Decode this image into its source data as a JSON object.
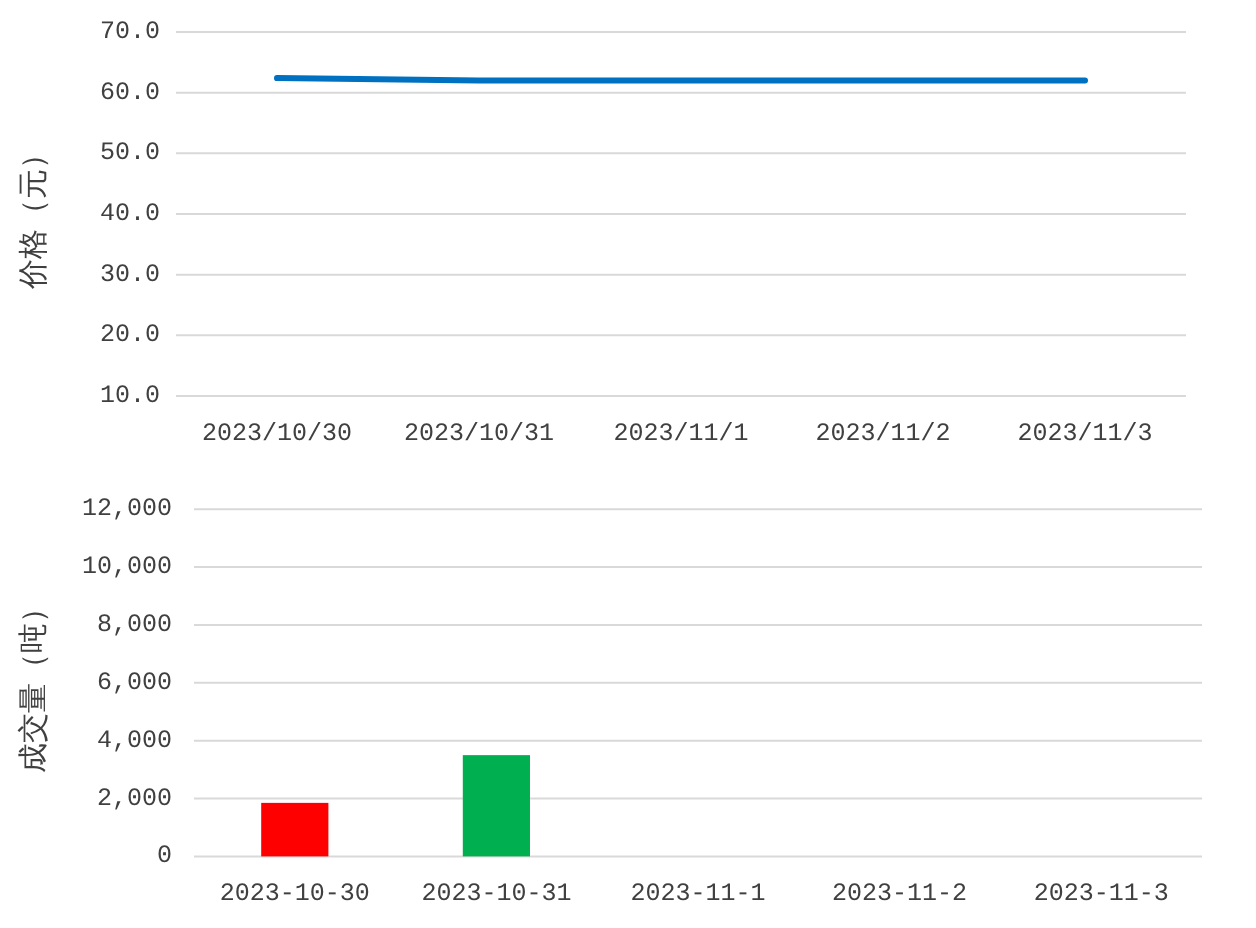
{
  "chart_data": [
    {
      "type": "line",
      "ylabel": "价格（元）",
      "categories": [
        "2023/10/30",
        "2023/10/31",
        "2023/11/1",
        "2023/11/2",
        "2023/11/3"
      ],
      "series": [
        {
          "color": "#0070c0",
          "values": [
            62.4,
            62.0,
            62.0,
            62.0,
            62.0
          ]
        }
      ],
      "ylim": [
        10,
        70
      ],
      "yticks": [
        {
          "value": 10,
          "label": "10.0"
        },
        {
          "value": 20,
          "label": "20.0"
        },
        {
          "value": 30,
          "label": "30.0"
        },
        {
          "value": 40,
          "label": "40.0"
        },
        {
          "value": 50,
          "label": "50.0"
        },
        {
          "value": 60,
          "label": "60.0"
        },
        {
          "value": 70,
          "label": "70.0"
        }
      ],
      "grid": "y"
    },
    {
      "type": "bar",
      "ylabel": "成交量（吨）",
      "categories": [
        "2023-10-30",
        "2023-10-31",
        "2023-11-1",
        "2023-11-2",
        "2023-11-3"
      ],
      "values": [
        1850,
        3500,
        null,
        null,
        null
      ],
      "colors": [
        "#ff0000",
        "#00b050",
        null,
        null,
        null
      ],
      "ylim": [
        0,
        12000
      ],
      "yticks": [
        0,
        {
          "value": 2000,
          "label": "2,000"
        },
        {
          "value": 4000,
          "label": "4,000"
        },
        {
          "value": 6000,
          "label": "6,000"
        },
        {
          "value": 8000,
          "label": "8,000"
        },
        {
          "value": 10000,
          "label": "10,000"
        },
        {
          "value": 12000,
          "label": "12,000"
        }
      ],
      "grid": "y"
    }
  ]
}
